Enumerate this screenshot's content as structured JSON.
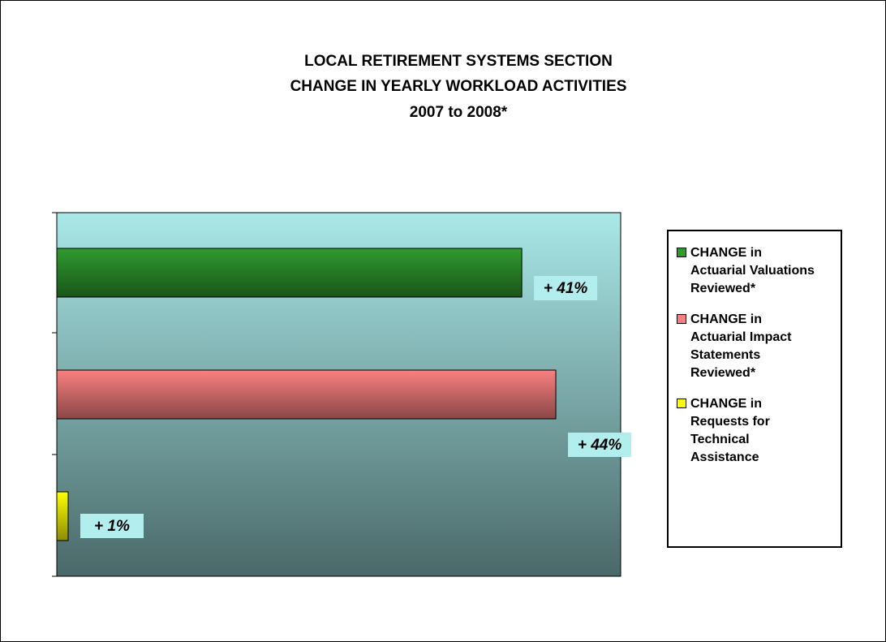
{
  "chart_data": {
    "type": "bar",
    "orientation": "horizontal",
    "title": [
      "LOCAL RETIREMENT SYSTEMS SECTION",
      "CHANGE IN YEARLY WORKLOAD ACTIVITIES",
      "2007 to 2008*"
    ],
    "series": [
      {
        "name": "CHANGE in Actuarial Valuations Reviewed*",
        "color": "#2f9a2f",
        "values": [
          41
        ],
        "value_labels": [
          "+ 41%"
        ]
      },
      {
        "name": "CHANGE in Actuarial Impact Statements Reviewed*",
        "color": "#fa8080",
        "values": [
          44
        ],
        "value_labels": [
          "+ 44%"
        ]
      },
      {
        "name": "CHANGE in Requests for Technical Assistance",
        "color": "#ffff00",
        "values": [
          1
        ],
        "value_labels": [
          "+ 1%"
        ]
      }
    ],
    "legend": "right"
  }
}
